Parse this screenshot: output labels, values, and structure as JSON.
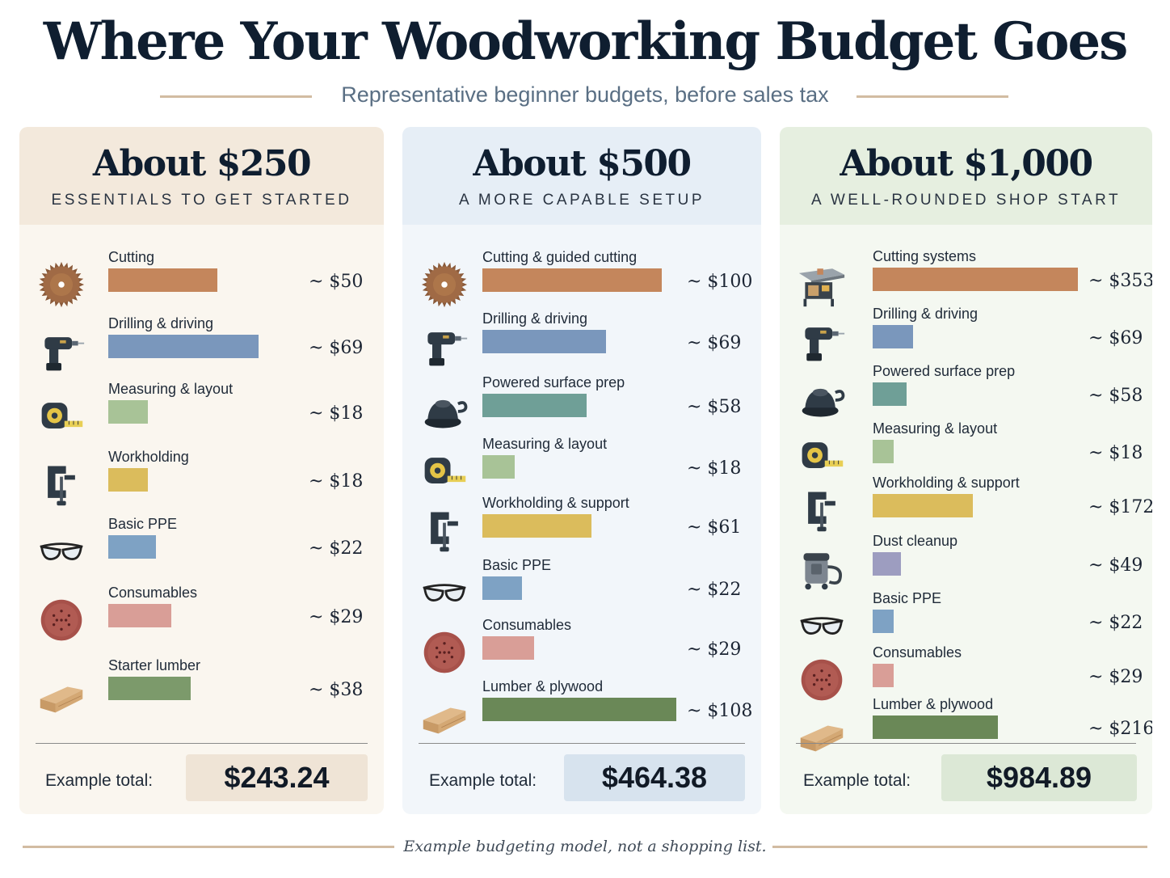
{
  "header": {
    "title": "Where Your Woodworking Budget Goes",
    "subtitle": "Representative beginner budgets, before sales tax"
  },
  "colors": {
    "cutting": "#c4865c",
    "drilling": "#7a97bc",
    "surface_prep": "#6f9f97",
    "measuring": "#a8c397",
    "workholding": "#dbbc5c",
    "dust": "#9d9dc0",
    "ppe": "#7ea2c4",
    "consumables": "#d99e97",
    "lumber_250": "#7c9a6b",
    "lumber": "#6a8857"
  },
  "chart_data": [
    {
      "type": "bar",
      "title": "About $250",
      "subtitle": "ESSENTIALS TO GET STARTED",
      "categories": [
        "Cutting",
        "Drilling & driving",
        "Measuring & layout",
        "Workholding",
        "Basic PPE",
        "Consumables",
        "Starter lumber"
      ],
      "values": [
        50,
        69,
        18,
        18,
        22,
        29,
        38
      ],
      "value_labels": [
        "~ $50",
        "~ $69",
        "~ $18",
        "~ $18",
        "~ $22",
        "~ $29",
        "~ $38"
      ],
      "icons": [
        "saw-blade-icon",
        "drill-icon",
        "tape-measure-icon",
        "clamp-icon",
        "safety-glasses-icon",
        "sanding-disc-icon",
        "lumber-icon"
      ],
      "bar_colors": [
        "#c4865c",
        "#7a97bc",
        "#a8c397",
        "#dbbc5c",
        "#7ea2c4",
        "#d99e97",
        "#7c9a6b"
      ],
      "total_label": "Example total:",
      "total": "$243.24"
    },
    {
      "type": "bar",
      "title": "About $500",
      "subtitle": "A MORE CAPABLE SETUP",
      "categories": [
        "Cutting & guided cutting",
        "Drilling & driving",
        "Powered surface prep",
        "Measuring & layout",
        "Workholding & support",
        "Basic PPE",
        "Consumables",
        "Lumber & plywood"
      ],
      "values": [
        100,
        69,
        58,
        18,
        61,
        22,
        29,
        108
      ],
      "value_labels": [
        "~ $100",
        "~ $69",
        "~ $58",
        "~ $18",
        "~ $61",
        "~ $22",
        "~ $29",
        "~ $108"
      ],
      "icons": [
        "saw-blade-icon",
        "drill-icon",
        "orbital-sander-icon",
        "tape-measure-icon",
        "clamp-icon",
        "safety-glasses-icon",
        "sanding-disc-icon",
        "lumber-icon"
      ],
      "bar_colors": [
        "#c4865c",
        "#7a97bc",
        "#6f9f97",
        "#a8c397",
        "#dbbc5c",
        "#7ea2c4",
        "#d99e97",
        "#6a8857"
      ],
      "total_label": "Example total:",
      "total": "$464.38"
    },
    {
      "type": "bar",
      "title": "About $1,000",
      "subtitle": "A WELL-ROUNDED SHOP START",
      "categories": [
        "Cutting systems",
        "Drilling & driving",
        "Powered surface prep",
        "Measuring & layout",
        "Workholding & support",
        "Dust cleanup",
        "Basic PPE",
        "Consumables",
        "Lumber & plywood"
      ],
      "values": [
        353,
        69,
        58,
        18,
        172,
        49,
        22,
        29,
        216
      ],
      "value_labels": [
        "~ $353",
        "~ $69",
        "~ $58",
        "~ $18",
        "~ $172",
        "~ $49",
        "~ $22",
        "~ $29",
        "~ $216"
      ],
      "icons": [
        "table-saw-icon",
        "drill-icon",
        "orbital-sander-icon",
        "tape-measure-icon",
        "clamp-icon",
        "shop-vac-icon",
        "safety-glasses-icon",
        "sanding-disc-icon",
        "lumber-icon"
      ],
      "bar_colors": [
        "#c4865c",
        "#7a97bc",
        "#6f9f97",
        "#a8c397",
        "#dbbc5c",
        "#9d9dc0",
        "#7ea2c4",
        "#d99e97",
        "#6a8857"
      ],
      "total_label": "Example total:",
      "total": "$984.89"
    }
  ],
  "footer": {
    "note": "Example budgeting model, not a shopping list."
  }
}
